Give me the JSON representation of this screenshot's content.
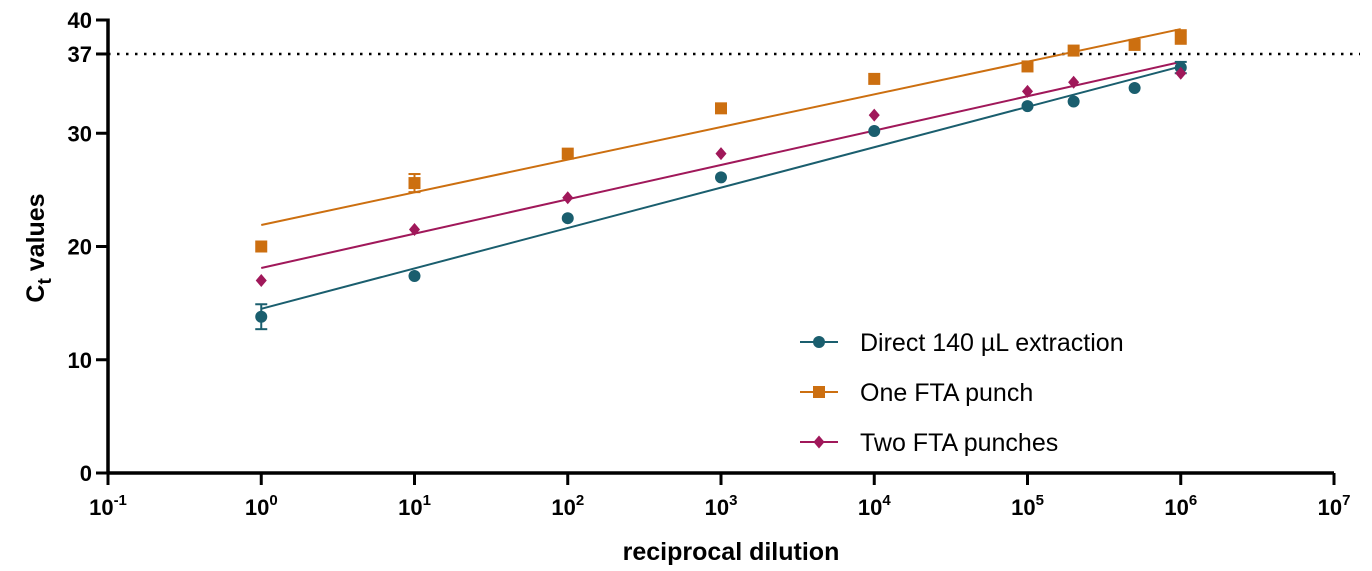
{
  "chart_data": {
    "type": "scatter",
    "xlabel": "reciprocal dilution",
    "ylabel": "Ct values",
    "ylabel_main": "C",
    "ylabel_sub": "t",
    "ylabel_rest": " values",
    "x_scale": "log10",
    "xlim": [
      0.1,
      10000000
    ],
    "ylim": [
      0,
      40
    ],
    "x_ticks": [
      {
        "base": "10",
        "exp": "-1",
        "value": 0.1
      },
      {
        "base": "10",
        "exp": "0",
        "value": 1
      },
      {
        "base": "10",
        "exp": "1",
        "value": 10
      },
      {
        "base": "10",
        "exp": "2",
        "value": 100
      },
      {
        "base": "10",
        "exp": "3",
        "value": 1000
      },
      {
        "base": "10",
        "exp": "4",
        "value": 10000
      },
      {
        "base": "10",
        "exp": "5",
        "value": 100000
      },
      {
        "base": "10",
        "exp": "6",
        "value": 1000000
      },
      {
        "base": "10",
        "exp": "7",
        "value": 10000000
      }
    ],
    "y_ticks": [
      "0",
      "10",
      "20",
      "30",
      "37",
      "40"
    ],
    "reference_line": {
      "y": 37,
      "style": "dotted"
    },
    "grid": false,
    "legend_position": "bottom-right",
    "series": [
      {
        "name": "Direct 140 µL extraction",
        "color": "#1a5e6e",
        "marker": "circle",
        "points": [
          {
            "x": 1,
            "y": 13.8,
            "err": 1.1
          },
          {
            "x": 10,
            "y": 17.4
          },
          {
            "x": 100,
            "y": 22.5
          },
          {
            "x": 1000,
            "y": 26.1
          },
          {
            "x": 10000,
            "y": 30.2
          },
          {
            "x": 100000,
            "y": 32.4
          },
          {
            "x": 200000,
            "y": 32.8
          },
          {
            "x": 500000,
            "y": 34.0
          },
          {
            "x": 1000000,
            "y": 35.8,
            "err": 0.5
          }
        ],
        "fit": [
          {
            "x": 1,
            "y": 14.5
          },
          {
            "x": 1000000,
            "y": 35.9
          }
        ]
      },
      {
        "name": "One FTA punch",
        "color": "#cc6f10",
        "marker": "square",
        "points": [
          {
            "x": 1,
            "y": 20.0
          },
          {
            "x": 10,
            "y": 25.6,
            "err": 0.8
          },
          {
            "x": 100,
            "y": 28.2
          },
          {
            "x": 1000,
            "y": 32.2
          },
          {
            "x": 10000,
            "y": 34.8
          },
          {
            "x": 100000,
            "y": 35.9
          },
          {
            "x": 200000,
            "y": 37.3
          },
          {
            "x": 500000,
            "y": 37.8
          },
          {
            "x": 1000000,
            "y": 38.5,
            "err": 0.6
          }
        ],
        "fit": [
          {
            "x": 1,
            "y": 21.9
          },
          {
            "x": 1000000,
            "y": 39.2
          }
        ]
      },
      {
        "name": "Two FTA punches",
        "color": "#a0185a",
        "marker": "diamond",
        "points": [
          {
            "x": 1,
            "y": 17.0
          },
          {
            "x": 10,
            "y": 21.5
          },
          {
            "x": 100,
            "y": 24.3
          },
          {
            "x": 1000,
            "y": 28.2
          },
          {
            "x": 10000,
            "y": 31.6
          },
          {
            "x": 100000,
            "y": 33.7
          },
          {
            "x": 200000,
            "y": 34.5
          },
          {
            "x": 1000000,
            "y": 35.3
          }
        ],
        "fit": [
          {
            "x": 1,
            "y": 18.1
          },
          {
            "x": 1000000,
            "y": 36.3
          }
        ]
      }
    ]
  }
}
